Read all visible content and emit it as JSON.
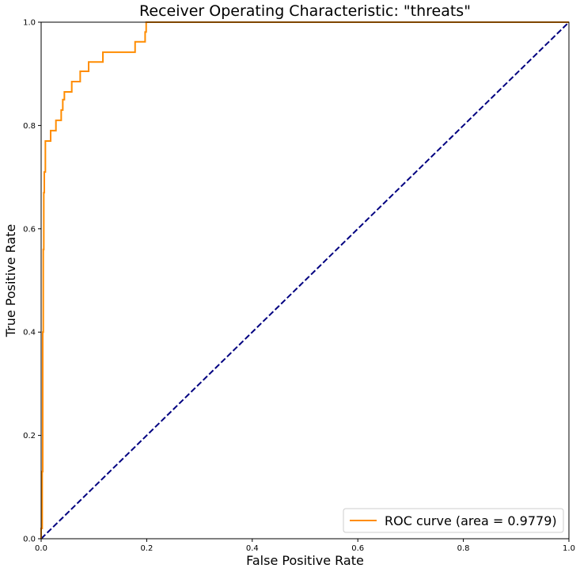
{
  "chart_data": {
    "type": "line",
    "title": "Receiver Operating Characteristic: \"threats\"",
    "xlabel": "False Positive Rate",
    "ylabel": "True Positive Rate",
    "xlim": [
      0.0,
      1.0
    ],
    "ylim": [
      0.0,
      1.0
    ],
    "x_ticks": [
      "0.0",
      "0.2",
      "0.4",
      "0.6",
      "0.8",
      "1.0"
    ],
    "y_ticks": [
      "0.0",
      "0.2",
      "0.4",
      "0.6",
      "0.8",
      "1.0"
    ],
    "grid": false,
    "legend_position": "bottom-right",
    "series": [
      {
        "name": "ROC curve (area = 0.9779)",
        "color": "#ff8c00",
        "line_style": "solid",
        "x": [
          0.0,
          0.0,
          0.002,
          0.002,
          0.003,
          0.003,
          0.004,
          0.004,
          0.005,
          0.005,
          0.006,
          0.006,
          0.008,
          0.008,
          0.018,
          0.018,
          0.028,
          0.028,
          0.038,
          0.038,
          0.041,
          0.041,
          0.044,
          0.044,
          0.058,
          0.058,
          0.074,
          0.074,
          0.09,
          0.09,
          0.117,
          0.117,
          0.178,
          0.178,
          0.197,
          0.197,
          0.199,
          0.199,
          1.0
        ],
        "y": [
          0.0,
          0.02,
          0.02,
          0.13,
          0.13,
          0.4,
          0.4,
          0.56,
          0.56,
          0.67,
          0.67,
          0.71,
          0.71,
          0.77,
          0.77,
          0.79,
          0.79,
          0.81,
          0.81,
          0.83,
          0.83,
          0.85,
          0.85,
          0.865,
          0.865,
          0.885,
          0.885,
          0.905,
          0.905,
          0.923,
          0.923,
          0.942,
          0.942,
          0.962,
          0.962,
          0.981,
          0.981,
          1.0,
          1.0
        ]
      },
      {
        "name": "",
        "color": "#000080",
        "line_style": "dashed",
        "x": [
          0.0,
          1.0
        ],
        "y": [
          0.0,
          1.0
        ]
      }
    ]
  }
}
